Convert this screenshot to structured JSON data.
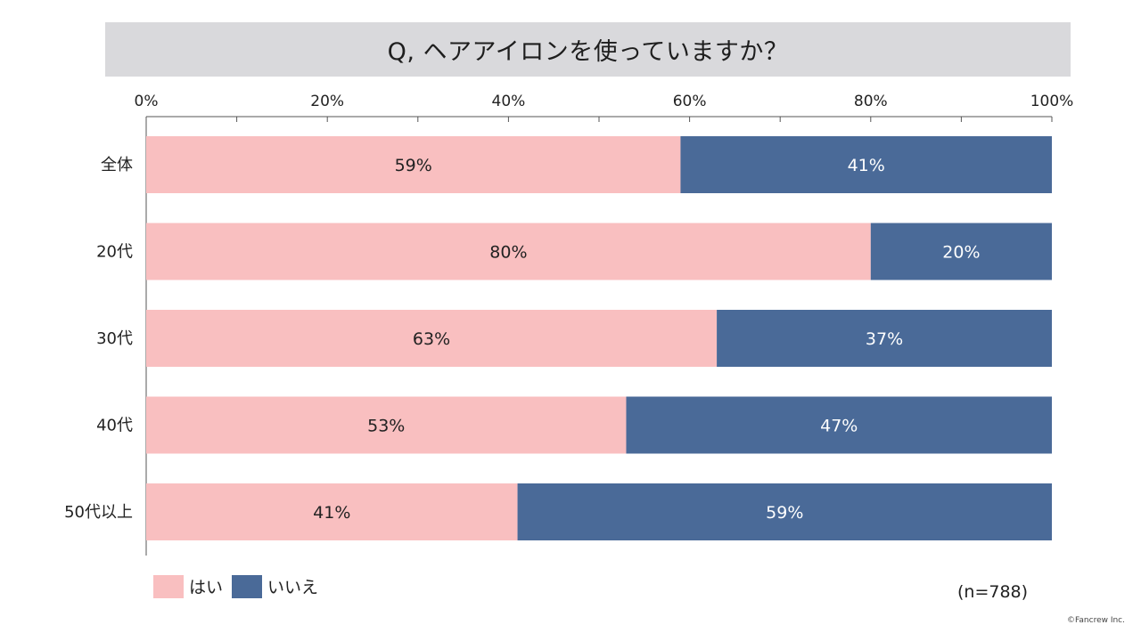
{
  "title": "Q, ヘアアイロンを使っていますか？",
  "sample_note": "(n=788)",
  "copyright": "©Fancrew Inc.",
  "colors": {
    "yes": "#f9bfc0",
    "no": "#4a6a98",
    "title_bg": "#d9d9dc"
  },
  "chart_data": {
    "type": "bar",
    "orientation": "horizontal",
    "stacked": true,
    "categories": [
      "全体",
      "20代",
      "30代",
      "40代",
      "50代以上"
    ],
    "series": [
      {
        "name": "はい",
        "values": [
          59,
          80,
          63,
          53,
          41
        ]
      },
      {
        "name": "いいえ",
        "values": [
          41,
          20,
          37,
          47,
          59
        ]
      }
    ],
    "data_labels": [
      [
        "59%",
        "80%",
        "63%",
        "53%",
        "41%"
      ],
      [
        "41%",
        "20%",
        "37%",
        "47%",
        "59%"
      ]
    ],
    "x_ticks": [
      "0%",
      "20%",
      "40%",
      "60%",
      "80%",
      "100%"
    ],
    "xlim": [
      0,
      100
    ],
    "axis_position": "top",
    "legend_position": "bottom-left",
    "grid": false
  }
}
